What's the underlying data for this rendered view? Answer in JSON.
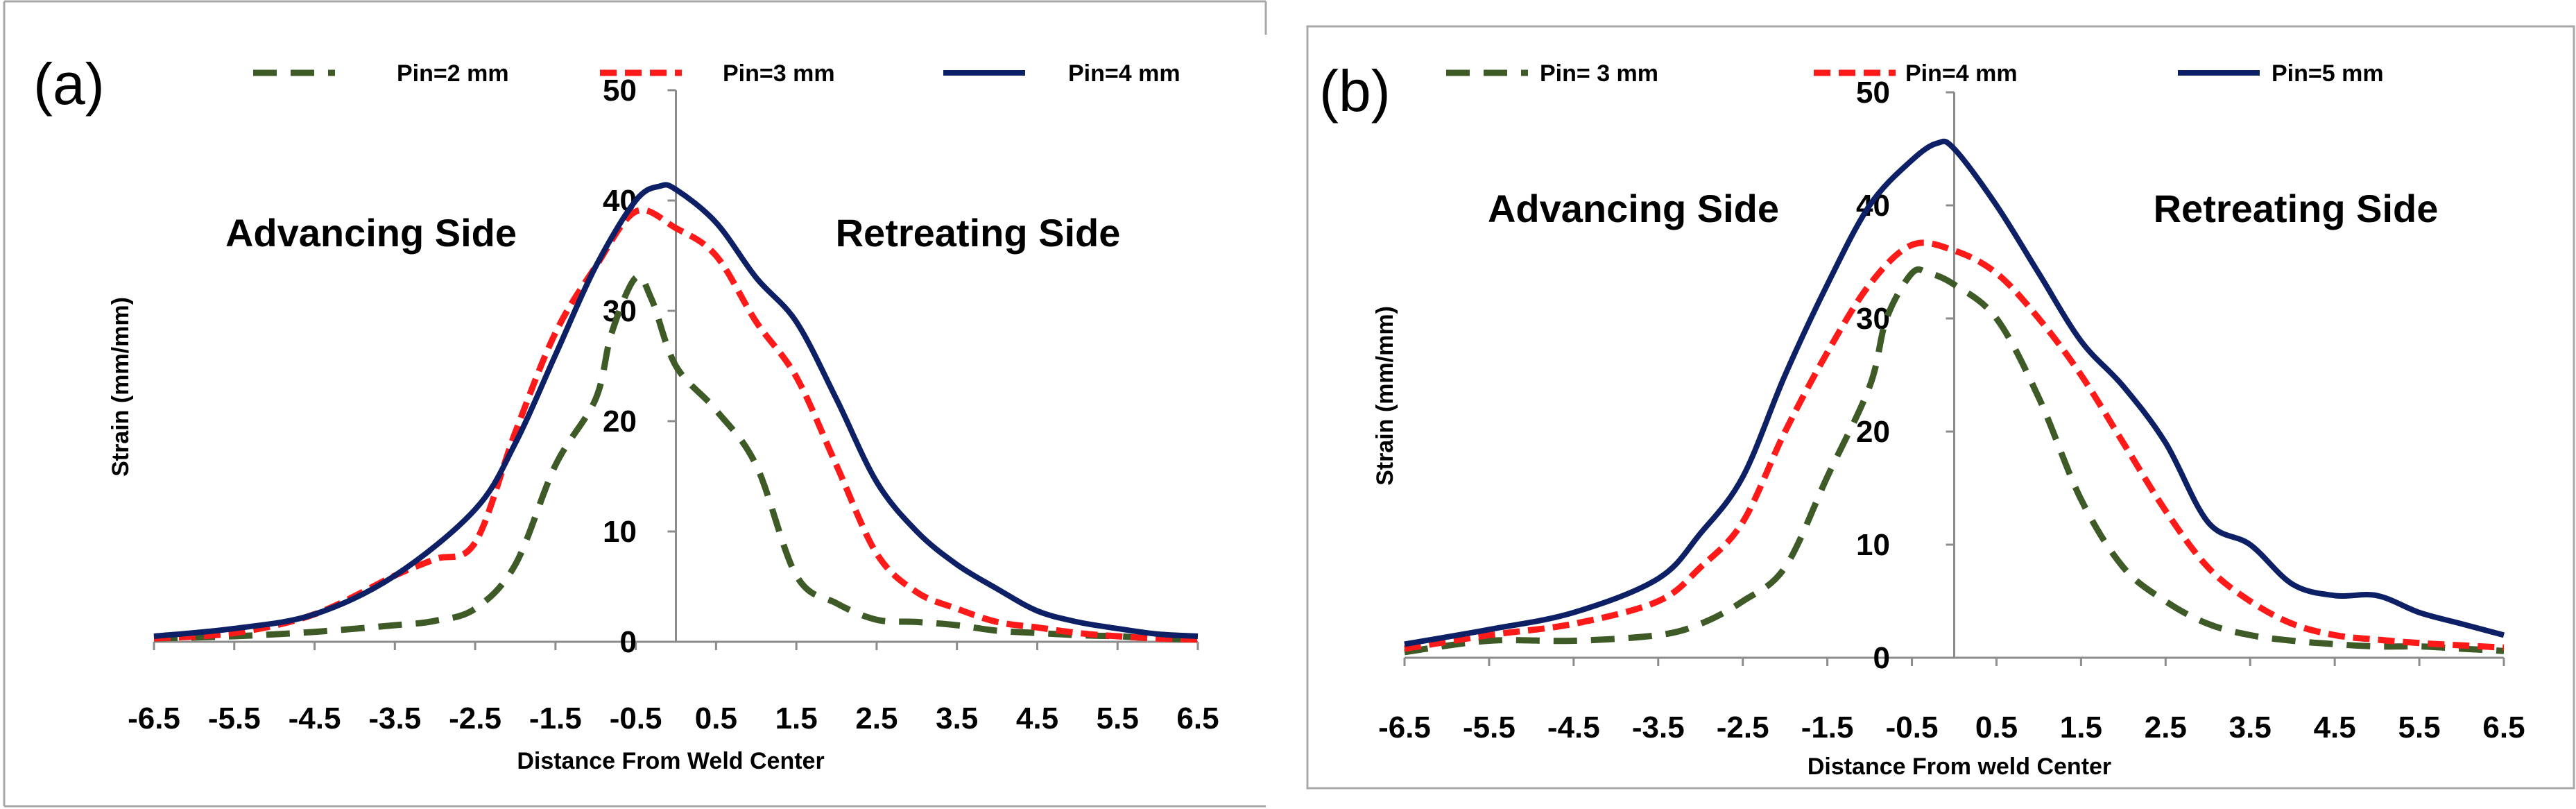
{
  "chart_data": [
    {
      "type": "line",
      "panel_label": "(a)",
      "xlabel": "Distance  From Weld  Center",
      "ylabel": "Strain (mm/mm)",
      "xlim": [
        -6.5,
        6.5
      ],
      "ylim": [
        0,
        50
      ],
      "xticks": [
        "-6.5",
        "-5.5",
        "-4.5",
        "-3.5",
        "-2.5",
        "-1.5",
        "-0.5",
        "0.5",
        "1.5",
        "2.5",
        "3.5",
        "4.5",
        "5.5",
        "6.5"
      ],
      "yticks": [
        "0",
        "10",
        "20",
        "30",
        "40",
        "50"
      ],
      "annotations": {
        "left": "Advancing Side",
        "right": "Retreating Side"
      },
      "legend_position": "top",
      "series": [
        {
          "name": "Pin=2 mm",
          "color": "#3d5a27",
          "style": "dashed",
          "x": [
            -6.5,
            -5.5,
            -4.5,
            -3.5,
            -3.0,
            -2.5,
            -2.0,
            -1.5,
            -1.0,
            -0.8,
            -0.5,
            -0.3,
            0.0,
            0.5,
            1.0,
            1.5,
            2.0,
            2.5,
            3.0,
            3.5,
            4.0,
            4.5,
            5.0,
            5.5,
            6.0,
            6.5
          ],
          "y": [
            0.3,
            0.5,
            0.9,
            1.5,
            1.9,
            3.0,
            7.0,
            16.0,
            22.0,
            28.0,
            33.0,
            31.0,
            25.0,
            21.0,
            16.0,
            6.0,
            3.5,
            2.0,
            1.8,
            1.5,
            1.0,
            0.8,
            0.6,
            0.5,
            0.3,
            0.2
          ]
        },
        {
          "name": "Pin=3 mm",
          "color": "#ff1a1a",
          "style": "dashed",
          "x": [
            -6.5,
            -5.5,
            -4.5,
            -3.5,
            -3.0,
            -2.5,
            -2.0,
            -1.5,
            -1.0,
            -0.5,
            0.0,
            0.5,
            1.0,
            1.5,
            2.0,
            2.5,
            3.0,
            3.5,
            4.0,
            4.5,
            5.0,
            5.5,
            6.0,
            6.5
          ],
          "y": [
            0.3,
            0.8,
            2.5,
            6.0,
            7.5,
            9.0,
            19.0,
            28.0,
            34.0,
            39.0,
            37.5,
            35.0,
            29.0,
            24.0,
            16.0,
            8.0,
            4.5,
            3.0,
            1.8,
            1.3,
            0.8,
            0.5,
            0.3,
            0.2
          ]
        },
        {
          "name": "Pin=4 mm",
          "color": "#0d2066",
          "style": "solid",
          "x": [
            -6.5,
            -5.5,
            -4.5,
            -3.5,
            -2.5,
            -2.0,
            -1.5,
            -1.0,
            -0.5,
            -0.2,
            0.0,
            0.5,
            1.0,
            1.5,
            2.0,
            2.5,
            3.0,
            3.5,
            4.0,
            4.5,
            5.0,
            5.5,
            6.0,
            6.5
          ],
          "y": [
            0.5,
            1.2,
            2.5,
            6.0,
            12.0,
            18.0,
            26.0,
            34.0,
            40.0,
            41.3,
            41.0,
            38.0,
            33.0,
            29.0,
            22.0,
            14.5,
            10.0,
            7.0,
            4.8,
            2.8,
            1.8,
            1.2,
            0.7,
            0.5
          ]
        }
      ]
    },
    {
      "type": "line",
      "panel_label": "(b)",
      "xlabel": "Distance  From weld Center",
      "ylabel": "Strain (mm/mm)",
      "xlim": [
        -6.5,
        6.5
      ],
      "ylim": [
        0,
        50
      ],
      "xticks": [
        "-6.5",
        "-5.5",
        "-4.5",
        "-3.5",
        "-2.5",
        "-1.5",
        "-0.5",
        "0.5",
        "1.5",
        "2.5",
        "3.5",
        "4.5",
        "5.5",
        "6.5"
      ],
      "yticks": [
        "0",
        "10",
        "20",
        "30",
        "40",
        "50"
      ],
      "annotations": {
        "left": "Advancing Side",
        "right": "Retreating Side"
      },
      "legend_position": "top",
      "series": [
        {
          "name": "Pin= 3 mm",
          "color": "#3d5a27",
          "style": "dashed",
          "x": [
            -6.5,
            -5.5,
            -4.5,
            -3.5,
            -3.0,
            -2.5,
            -2.0,
            -1.5,
            -1.0,
            -0.8,
            -0.5,
            -0.3,
            0.0,
            0.5,
            1.0,
            1.5,
            2.0,
            2.5,
            3.0,
            3.5,
            4.0,
            4.5,
            5.0,
            5.5,
            6.0,
            6.5
          ],
          "y": [
            0.5,
            1.5,
            1.5,
            2.0,
            3.0,
            5.0,
            8.0,
            16.0,
            24.0,
            30.0,
            34.0,
            34.0,
            33.0,
            30.0,
            23.0,
            14.0,
            8.0,
            5.0,
            3.0,
            2.0,
            1.5,
            1.2,
            1.0,
            1.0,
            0.8,
            0.6
          ]
        },
        {
          "name": "Pin=4 mm",
          "color": "#ff1a1a",
          "style": "dashed",
          "x": [
            -6.5,
            -5.5,
            -4.5,
            -3.5,
            -3.0,
            -2.5,
            -2.0,
            -1.5,
            -1.0,
            -0.5,
            0.0,
            0.5,
            1.0,
            1.5,
            2.0,
            2.5,
            3.0,
            3.5,
            4.0,
            4.5,
            5.0,
            5.5,
            6.0,
            6.5
          ],
          "y": [
            0.8,
            2.0,
            3.0,
            5.0,
            8.0,
            12.0,
            20.0,
            27.0,
            33.0,
            36.5,
            36.0,
            34.0,
            30.0,
            25.0,
            19.0,
            13.0,
            8.0,
            5.0,
            3.0,
            2.0,
            1.6,
            1.3,
            1.1,
            0.9
          ]
        },
        {
          "name": "Pin=5 mm",
          "color": "#0d2066",
          "style": "solid",
          "x": [
            -6.5,
            -5.5,
            -4.5,
            -3.5,
            -3.0,
            -2.5,
            -2.0,
            -1.5,
            -1.0,
            -0.5,
            -0.2,
            0.0,
            0.5,
            1.0,
            1.5,
            2.0,
            2.5,
            3.0,
            3.5,
            4.0,
            4.5,
            5.0,
            5.5,
            6.0,
            6.5
          ],
          "y": [
            1.2,
            2.5,
            4.0,
            7.0,
            11.0,
            16.0,
            25.0,
            33.0,
            40.0,
            44.0,
            45.5,
            45.0,
            40.0,
            34.0,
            28.0,
            24.0,
            19.0,
            12.0,
            10.0,
            6.5,
            5.5,
            5.5,
            4.0,
            3.0,
            2.0
          ]
        }
      ]
    }
  ]
}
